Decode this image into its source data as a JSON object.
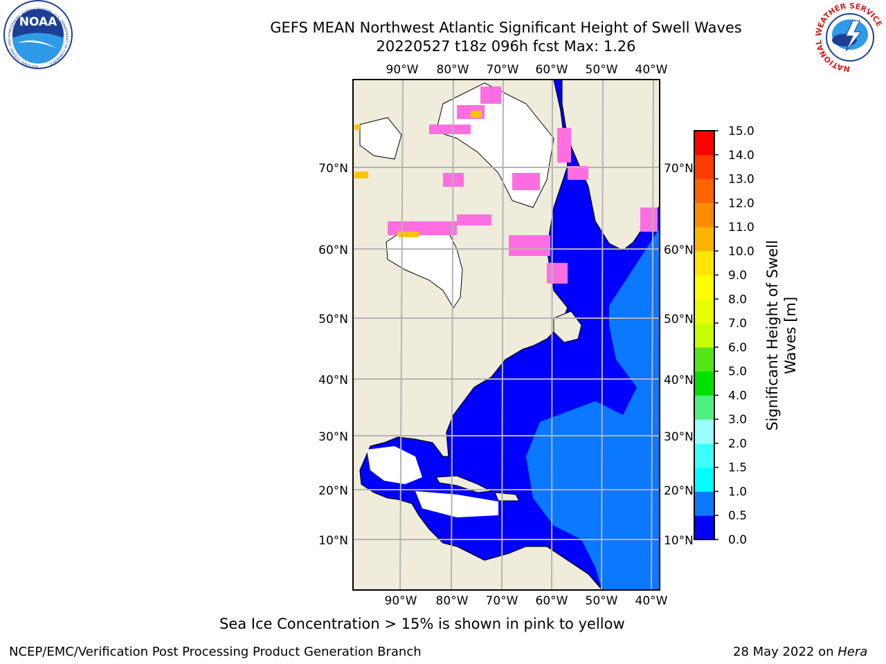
{
  "header": {
    "title_line1": "GEFS MEAN Northwest Atlantic Significant Height of Swell Waves",
    "title_line2": "20220527 t18z 096h fcst   Max: 1.26",
    "noaa_logo": "NOAA",
    "noaa_ring_text": "NATIONAL OCEANIC AND ATMOSPHERIC ADMINISTRATION · U.S. DEPARTMENT OF COMMERCE",
    "nws_logo_text": "NATIONAL WEATHER SERVICE"
  },
  "map": {
    "lon_labels": [
      "90°W",
      "80°W",
      "70°W",
      "60°W",
      "50°W",
      "40°W"
    ],
    "lat_labels": [
      "70°N",
      "60°N",
      "50°N",
      "40°N",
      "30°N",
      "20°N",
      "10°N"
    ]
  },
  "colorbar": {
    "label_line1": "Significant Height of Swell",
    "label_line2": "Waves [m]",
    "ticks": [
      "0.0",
      "0.5",
      "1.0",
      "1.5",
      "2.0",
      "3.0",
      "4.0",
      "5.0",
      "6.0",
      "7.0",
      "8.0",
      "9.0",
      "10.0",
      "11.0",
      "12.0",
      "13.0",
      "14.0",
      "15.0"
    ],
    "colors": [
      "#0000ff",
      "#0a78ff",
      "#00ffff",
      "#3cffff",
      "#9bffff",
      "#50f080",
      "#00e000",
      "#55e615",
      "#c8ff00",
      "#e8ff00",
      "#ffff00",
      "#ffe600",
      "#ffb400",
      "#ff8c00",
      "#ff6400",
      "#ff3c00",
      "#ff0000"
    ]
  },
  "caption": "Sea Ice Concentration > 15% is shown in pink to yellow",
  "footer": {
    "left": "NCEP/EMC/Verification Post Processing Product Generation Branch",
    "right_date": "28 May 2022 on ",
    "right_host": "Hera"
  }
}
